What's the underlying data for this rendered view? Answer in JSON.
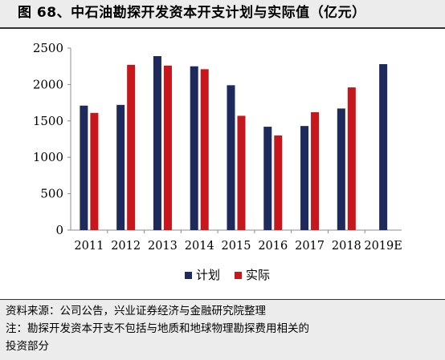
{
  "title": "图 68、中石油勘探开发资本开支计划与实际值（亿元）",
  "colors": {
    "plan": "#1f2a5c",
    "actual": "#c8161d",
    "axis": "#8c8c8c"
  },
  "chart_data": {
    "type": "bar",
    "categories": [
      "2011",
      "2012",
      "2013",
      "2014",
      "2015",
      "2016",
      "2017",
      "2018",
      "2019E"
    ],
    "series": [
      {
        "name": "计划",
        "values": [
          1710,
          1720,
          2390,
          2250,
          1990,
          1420,
          1430,
          1670,
          2280
        ]
      },
      {
        "name": "实际",
        "values": [
          1610,
          2270,
          2260,
          2210,
          1570,
          1300,
          1620,
          1960,
          null
        ]
      }
    ],
    "yticks": [
      "0",
      "500",
      "1000",
      "1500",
      "2000",
      "2500"
    ],
    "ylim": [
      0,
      2500
    ],
    "grid": false,
    "legend_position": "bottom-center"
  },
  "footer": {
    "source": "资料来源：公司公告，兴业证券经济与金融研究院整理",
    "note_line1": "注：勘探开发资本开支不包括与地质和地球物理勘探费用相关的",
    "note_line2": "投资部分"
  }
}
